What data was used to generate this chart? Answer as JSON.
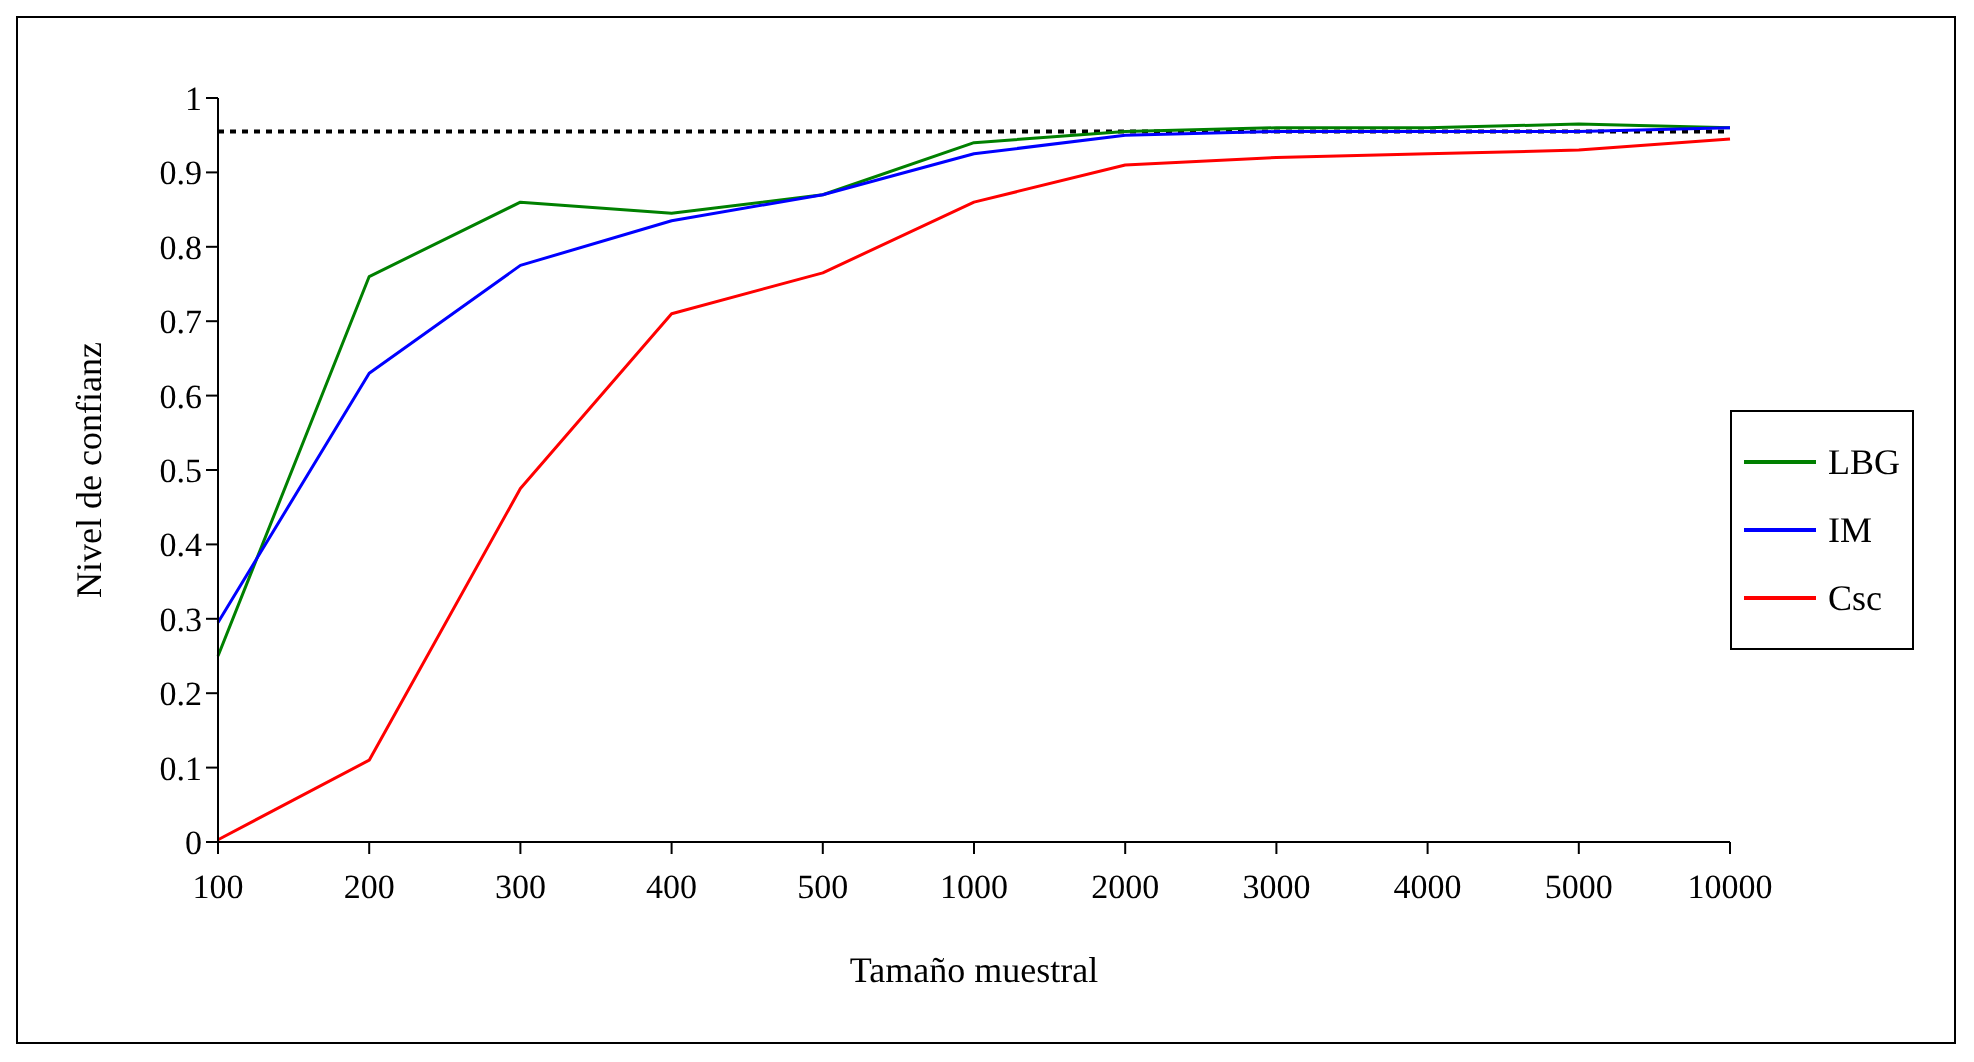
{
  "chart_data": {
    "type": "line",
    "xlabel": "Tamaño muestral",
    "ylabel": "Nivel de confianz",
    "categories": [
      "100",
      "200",
      "300",
      "400",
      "500",
      "1000",
      "2000",
      "3000",
      "4000",
      "5000",
      "10000"
    ],
    "series": [
      {
        "name": "LBG",
        "color": "#008000",
        "values": [
          0.25,
          0.76,
          0.86,
          0.845,
          0.87,
          0.94,
          0.955,
          0.96,
          0.96,
          0.965,
          0.96
        ]
      },
      {
        "name": "IM",
        "color": "#0000ff",
        "values": [
          0.295,
          0.63,
          0.775,
          0.835,
          0.87,
          0.925,
          0.95,
          0.955,
          0.955,
          0.955,
          0.96
        ]
      },
      {
        "name": "Csc",
        "color": "#ff0000",
        "values": [
          0.003,
          0.11,
          0.475,
          0.71,
          0.765,
          0.86,
          0.91,
          0.92,
          0.925,
          0.93,
          0.945
        ]
      }
    ],
    "ylim": [
      0,
      1
    ],
    "yticks": [
      0,
      0.1,
      0.2,
      0.3,
      0.4,
      0.5,
      0.6,
      0.7,
      0.8,
      0.9,
      1
    ],
    "ref_lines": [
      {
        "axis": "y",
        "value": 0.955,
        "color": "#000000",
        "line_style": "dotted"
      }
    ],
    "grid": false,
    "legend": "right",
    "marker": "none",
    "line_style": "solid"
  }
}
